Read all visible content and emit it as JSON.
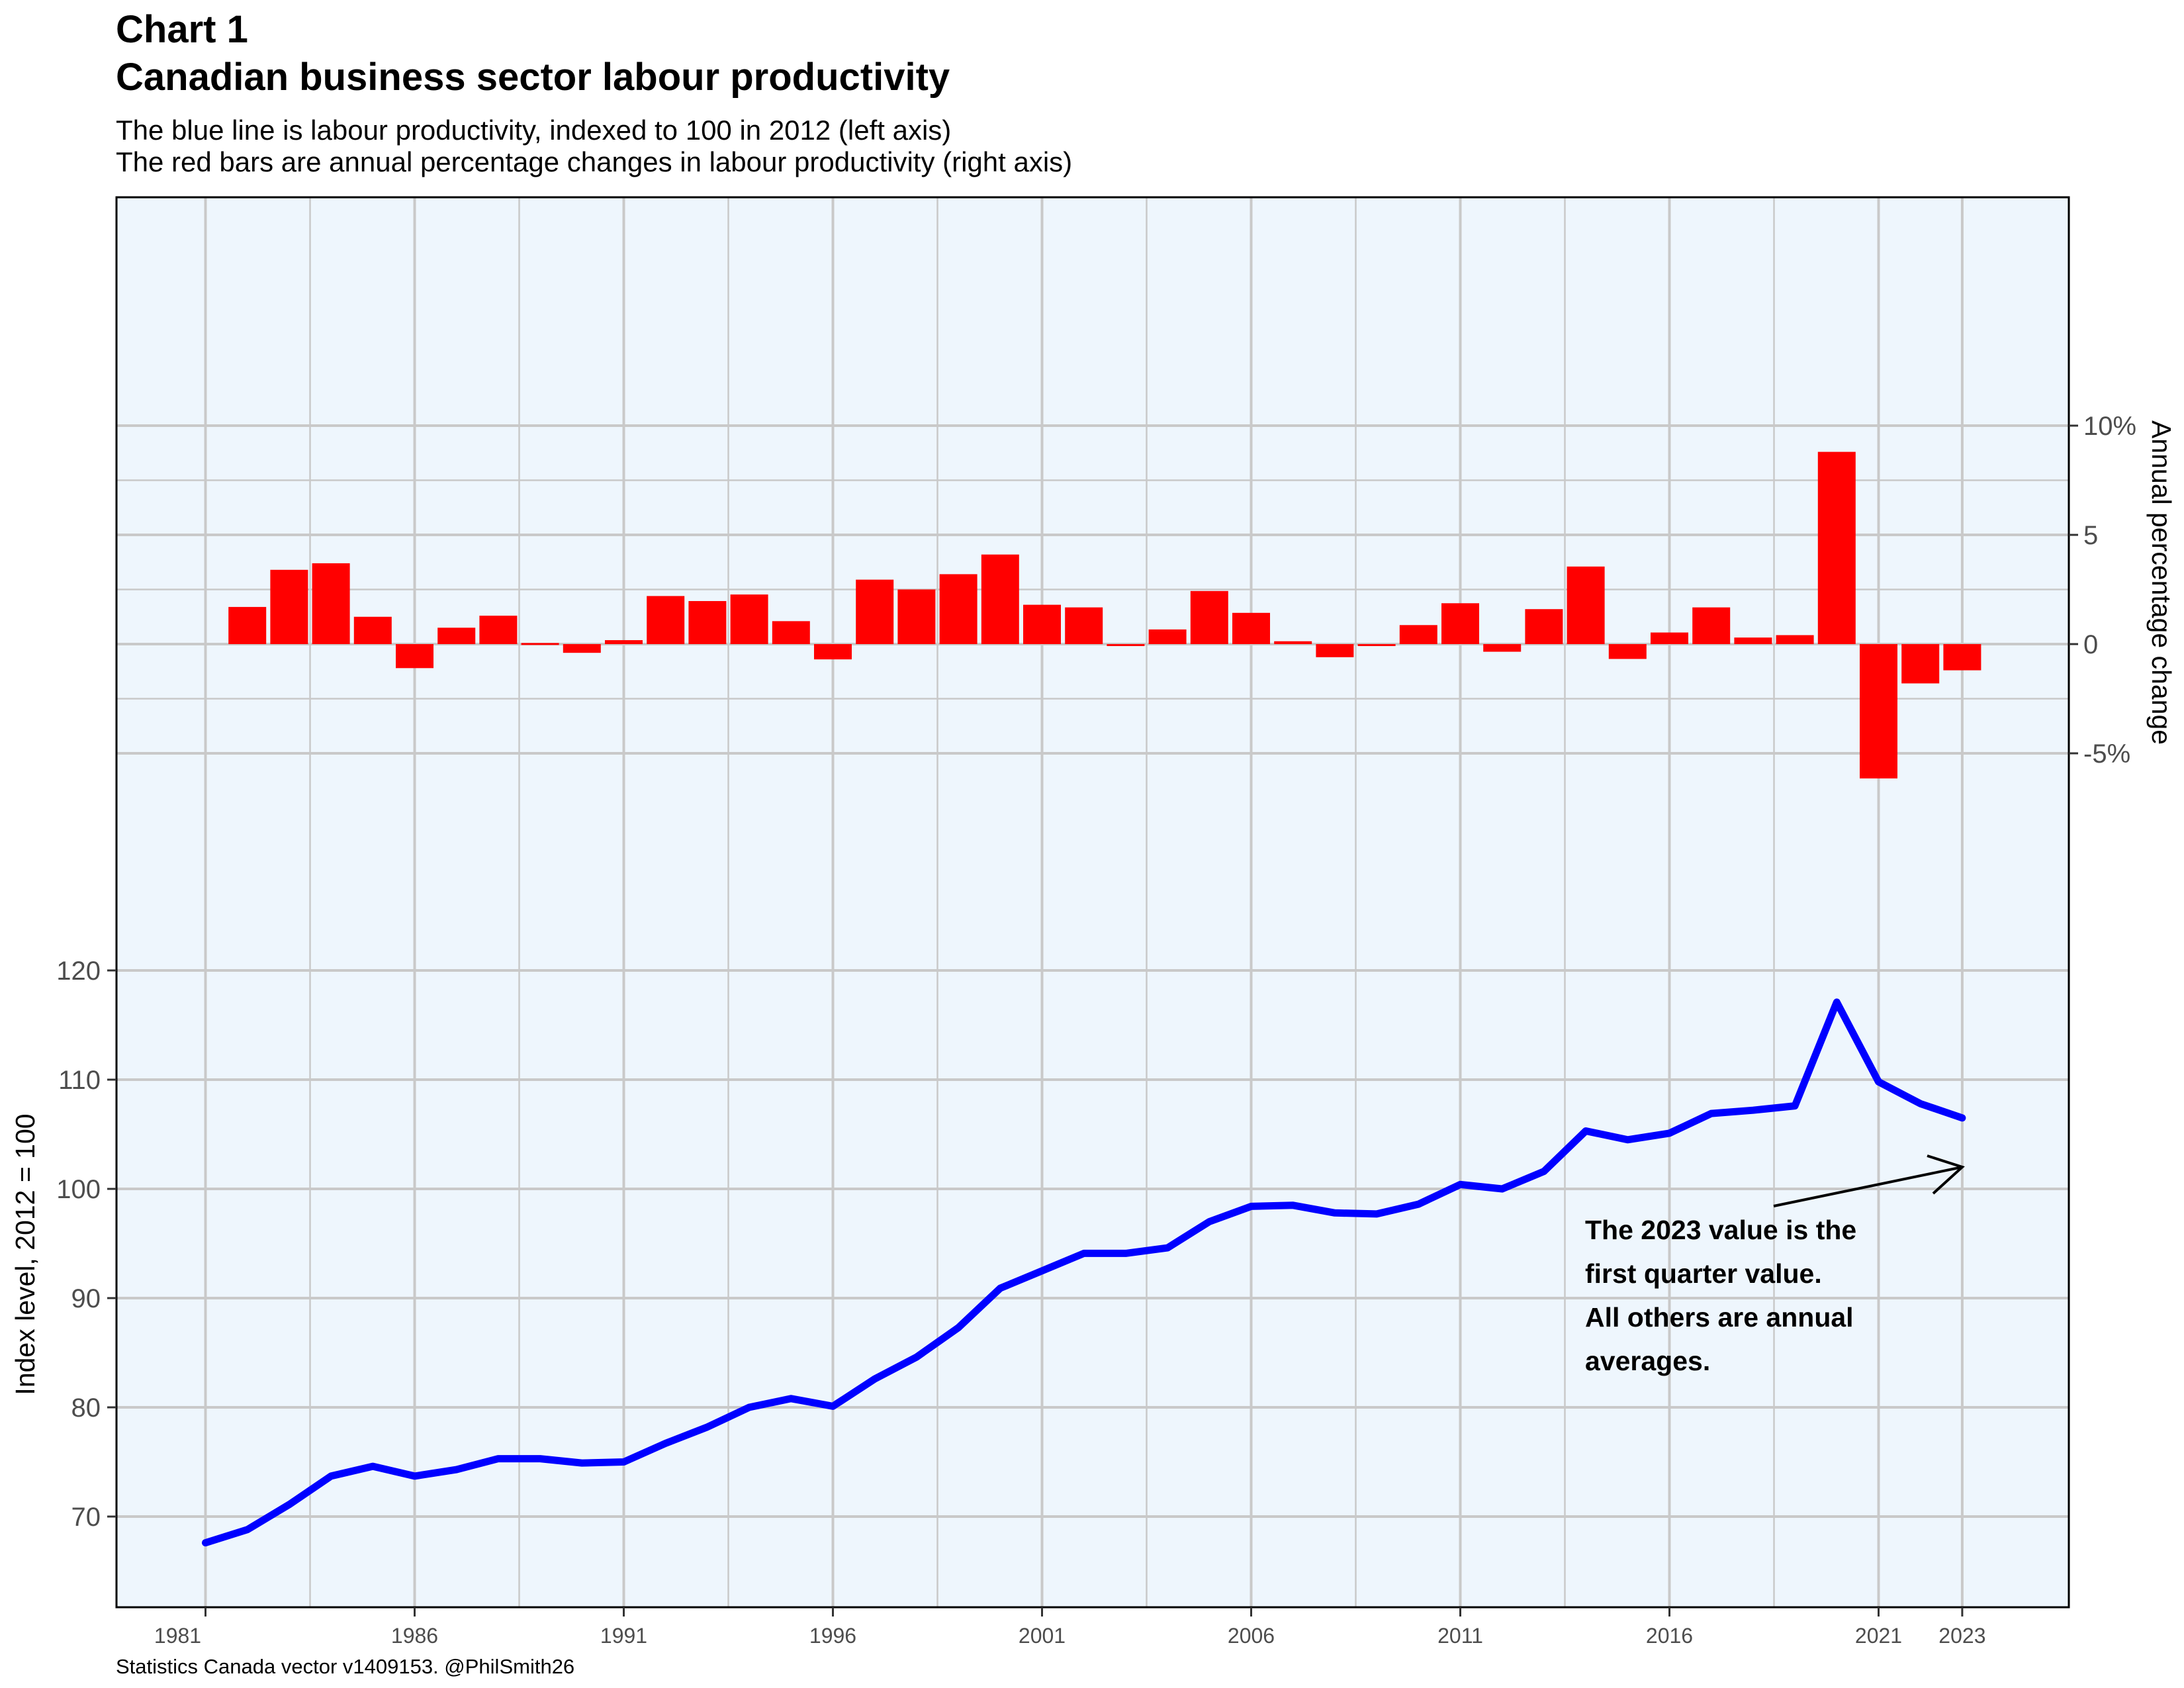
{
  "header": {
    "title_line1": "Chart 1",
    "title_line2": "Canadian business sector labour productivity",
    "subtitle_line1": "The blue line is labour productivity, indexed to 100 in 2012 (left axis)",
    "subtitle_line2": "The red bars are annual percentage changes in labour productivity (right axis)"
  },
  "caption": "Statistics Canada vector v1409153. @PhilSmith26",
  "annotation": {
    "lines": [
      "The 2023 value is the",
      "first quarter value.",
      "All others are annual",
      "averages."
    ]
  },
  "colors": {
    "panel_background": "#eef6fd",
    "line": "#0000ff",
    "bars": "#ff0000",
    "grid": "#c9c9c9"
  },
  "chart_data": {
    "type": "bar+line",
    "title": "Canadian business sector labour productivity",
    "xlabel": "",
    "left_axis": {
      "label": "Index level, 2012 = 100",
      "ticks": [
        70,
        80,
        90,
        100,
        110,
        120
      ],
      "tick_labels": [
        "70",
        "80",
        "90",
        "100",
        "110",
        "120"
      ]
    },
    "right_axis": {
      "label": "Annual percentage change",
      "ticks": [
        10,
        5,
        0,
        -5
      ],
      "tick_labels": [
        "10%",
        "5",
        "0",
        "-5%"
      ]
    },
    "x_ticks": [
      1981,
      1986,
      1991,
      1996,
      2001,
      2006,
      2011,
      2016,
      2021,
      2023
    ],
    "x_tick_labels": [
      "1981",
      "1986",
      "1991",
      "1996",
      "2001",
      "2006",
      "2011",
      "2016",
      "2021",
      "2023"
    ],
    "grid": true,
    "series": [
      {
        "name": "Labour productivity index",
        "type": "line",
        "axis": "left",
        "x": [
          1981,
          1982,
          1983,
          1984,
          1985,
          1986,
          1987,
          1988,
          1989,
          1990,
          1991,
          1992,
          1993,
          1994,
          1995,
          1996,
          1997,
          1998,
          1999,
          2000,
          2001,
          2002,
          2003,
          2004,
          2005,
          2006,
          2007,
          2008,
          2009,
          2010,
          2011,
          2012,
          2013,
          2014,
          2015,
          2016,
          2017,
          2018,
          2019,
          2020,
          2021,
          2022,
          2023
        ],
        "values": [
          67.6,
          68.8,
          71.1,
          73.7,
          74.6,
          73.7,
          74.3,
          75.3,
          75.3,
          74.9,
          75.0,
          76.7,
          78.2,
          80.0,
          80.8,
          80.1,
          82.6,
          84.6,
          87.3,
          90.9,
          92.5,
          94.1,
          94.1,
          94.6,
          97.0,
          98.4,
          98.5,
          97.8,
          97.7,
          98.6,
          100.4,
          100.0,
          101.6,
          105.3,
          104.5,
          105.1,
          106.9,
          107.2,
          107.6,
          117.1,
          109.8,
          107.8,
          106.5
        ]
      },
      {
        "name": "Annual percentage change",
        "type": "bar",
        "axis": "right",
        "x": [
          1982,
          1983,
          1984,
          1985,
          1986,
          1987,
          1988,
          1989,
          1990,
          1991,
          1992,
          1993,
          1994,
          1995,
          1996,
          1997,
          1998,
          1999,
          2000,
          2001,
          2002,
          2003,
          2004,
          2005,
          2006,
          2007,
          2008,
          2009,
          2010,
          2011,
          2012,
          2013,
          2014,
          2015,
          2016,
          2017,
          2018,
          2019,
          2020,
          2021,
          2022,
          2023
        ],
        "values": [
          1.7,
          3.4,
          3.7,
          1.25,
          -1.1,
          0.75,
          1.3,
          0.05,
          -0.4,
          0.18,
          2.2,
          1.97,
          2.27,
          1.05,
          -0.7,
          2.95,
          2.5,
          3.2,
          4.1,
          1.8,
          1.68,
          0.0,
          0.67,
          2.43,
          1.43,
          0.13,
          -0.6,
          -0.05,
          0.87,
          1.87,
          -0.35,
          1.6,
          3.55,
          -0.68,
          0.53,
          1.68,
          0.3,
          0.41,
          8.8,
          -6.15,
          -1.8,
          -1.2
        ]
      }
    ]
  }
}
